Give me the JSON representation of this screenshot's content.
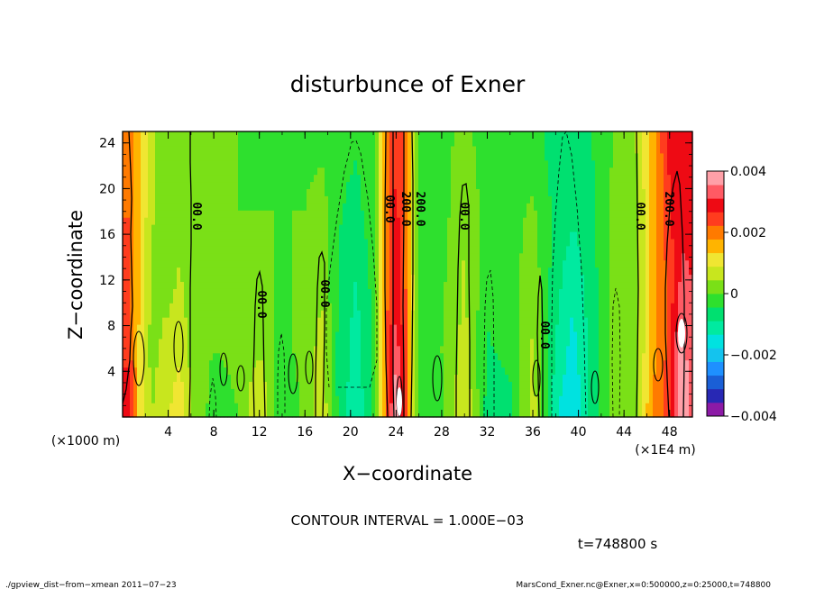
{
  "chart_data": {
    "type": "heatmap",
    "title": "disturbunce of Exner",
    "xlabel": "X−coordinate",
    "ylabel": "Z−coordinate",
    "x_unit_left": "(×1000 m)",
    "x_unit_right": "(×1E4 m)",
    "xlim": [
      0,
      50
    ],
    "ylim": [
      0,
      25
    ],
    "x_ticks": [
      "4",
      "8",
      "12",
      "16",
      "20",
      "24",
      "28",
      "32",
      "36",
      "40",
      "44",
      "48"
    ],
    "y_ticks": [
      "4",
      "8",
      "12",
      "16",
      "20",
      "24"
    ],
    "colorbar": {
      "range": [
        -0.004,
        0.004
      ],
      "tick_labels": [
        "0.004",
        "0.002",
        "0",
        "−0.002",
        "−0.004"
      ],
      "colors": [
        "#8c1aa6",
        "#2828b4",
        "#1a5fd6",
        "#1e90ff",
        "#14c3ee",
        "#00e2e0",
        "#00eaa0",
        "#00e070",
        "#2ee02e",
        "#7ae017",
        "#c8e61e",
        "#f0e632",
        "#ffb400",
        "#ff7a00",
        "#ff3c1e",
        "#ee0a14",
        "#ff5a64",
        "#ffa0a8"
      ]
    },
    "contour_interval_text": "CONTOUR INTERVAL = 1.000E−03",
    "contour_labels": [
      "0.00",
      "0.00",
      "0.00",
      "0.00",
      "0.002",
      "0.002",
      "0.00",
      "0.00",
      "0.00",
      "0.002",
      "0.00"
    ],
    "columns": [
      {
        "x": 0.5,
        "v": [
          0.0028,
          0.0026,
          0.0024,
          0.0022,
          0.002
        ]
      },
      {
        "x": 1.5,
        "v": [
          0.0012,
          0.0012,
          0.0013,
          0.0014,
          0.0015
        ]
      },
      {
        "x": 2.5,
        "v": [
          0.0004,
          0.0003,
          0.0004,
          0.0005,
          0.0005
        ]
      },
      {
        "x": 4.0,
        "v": [
          0.0008,
          0.0006,
          0.0003,
          0.0002,
          0.0002
        ]
      },
      {
        "x": 5.0,
        "v": [
          0.0012,
          0.0008,
          0.0005,
          0.0003,
          0.0002
        ]
      },
      {
        "x": 6.0,
        "v": [
          0.0005,
          0.0003,
          0.0002,
          0.0002,
          0.0002
        ]
      },
      {
        "x": 8.0,
        "v": [
          -0.0002,
          0.0,
          0.0002,
          0.0001,
          0.0
        ]
      },
      {
        "x": 10.0,
        "v": [
          0.0,
          0.0001,
          0.0001,
          0.0,
          0.0
        ]
      },
      {
        "x": 12.0,
        "v": [
          0.0009,
          0.0004,
          0.0002,
          0.0,
          -0.0001
        ]
      },
      {
        "x": 14.0,
        "v": [
          -0.0004,
          -0.0002,
          -0.0001,
          0.0,
          0.0
        ]
      },
      {
        "x": 16.0,
        "v": [
          0.0001,
          0.0002,
          0.0001,
          0.0,
          -0.0001
        ]
      },
      {
        "x": 17.5,
        "v": [
          0.0008,
          0.0006,
          0.0004,
          0.0002,
          -0.0001
        ]
      },
      {
        "x": 19.0,
        "v": [
          -0.0006,
          -0.0006,
          -0.0005,
          -0.0004,
          -0.0003
        ]
      },
      {
        "x": 20.5,
        "v": [
          -0.0012,
          -0.0011,
          -0.0009,
          -0.0006,
          -0.0004
        ]
      },
      {
        "x": 22.0,
        "v": [
          -0.0004,
          -0.0004,
          -0.0003,
          -0.0002,
          -0.0001
        ]
      },
      {
        "x": 23.2,
        "v": [
          0.0022,
          0.0022,
          0.0021,
          0.002,
          0.002
        ]
      },
      {
        "x": 24.0,
        "v": [
          0.0042,
          0.0034,
          0.003,
          0.0028,
          0.0027
        ]
      },
      {
        "x": 24.8,
        "v": [
          0.0024,
          0.0024,
          0.0023,
          0.0022,
          0.0021
        ]
      },
      {
        "x": 26.0,
        "v": [
          -0.0003,
          -0.0003,
          -0.0002,
          -0.0002,
          -0.0002
        ]
      },
      {
        "x": 28.0,
        "v": [
          -0.0001,
          0.0,
          -0.0001,
          -0.0002,
          -0.0002
        ]
      },
      {
        "x": 30.0,
        "v": [
          0.0009,
          0.0006,
          0.0005,
          0.0004,
          0.0002
        ]
      },
      {
        "x": 32.0,
        "v": [
          -0.0006,
          -0.0005,
          -0.0003,
          -0.0002,
          -0.0003
        ]
      },
      {
        "x": 34.0,
        "v": [
          -0.0006,
          -0.0003,
          -0.0002,
          -0.0002,
          -0.0002
        ]
      },
      {
        "x": 36.0,
        "v": [
          0.0007,
          0.0005,
          0.0003,
          0.0001,
          -0.0003
        ]
      },
      {
        "x": 38.0,
        "v": [
          -0.0012,
          -0.0009,
          -0.0007,
          -0.0006,
          -0.0006
        ]
      },
      {
        "x": 39.5,
        "v": [
          -0.0018,
          -0.0015,
          -0.0012,
          -0.0008,
          -0.0006
        ]
      },
      {
        "x": 41.0,
        "v": [
          -0.0008,
          -0.0008,
          -0.0007,
          -0.0006,
          -0.0005
        ]
      },
      {
        "x": 43.0,
        "v": [
          0.0002,
          0.0001,
          0.0001,
          0.0001,
          0.0
        ]
      },
      {
        "x": 45.0,
        "v": [
          0.0003,
          0.0002,
          0.0001,
          0.0002,
          0.0004
        ]
      },
      {
        "x": 46.5,
        "v": [
          0.0018,
          0.0016,
          0.0015,
          0.0015,
          0.0016
        ]
      },
      {
        "x": 48.0,
        "v": [
          0.0025,
          0.0024,
          0.0024,
          0.0026,
          0.0028
        ]
      },
      {
        "x": 49.0,
        "v": [
          0.0042,
          0.0038,
          0.0032,
          0.003,
          0.003
        ]
      },
      {
        "x": 50.0,
        "v": [
          0.0034,
          0.0032,
          0.0031,
          0.003,
          0.0031
        ]
      }
    ],
    "z_levels": [
      1,
      6,
      12,
      18,
      24
    ]
  },
  "time_label": "t=748800 s",
  "footer_left": "./gpview_dist−from−xmean  2011−07−23",
  "footer_right": "MarsCond_Exner.nc@Exner,x=0:500000,z=0:25000,t=748800"
}
